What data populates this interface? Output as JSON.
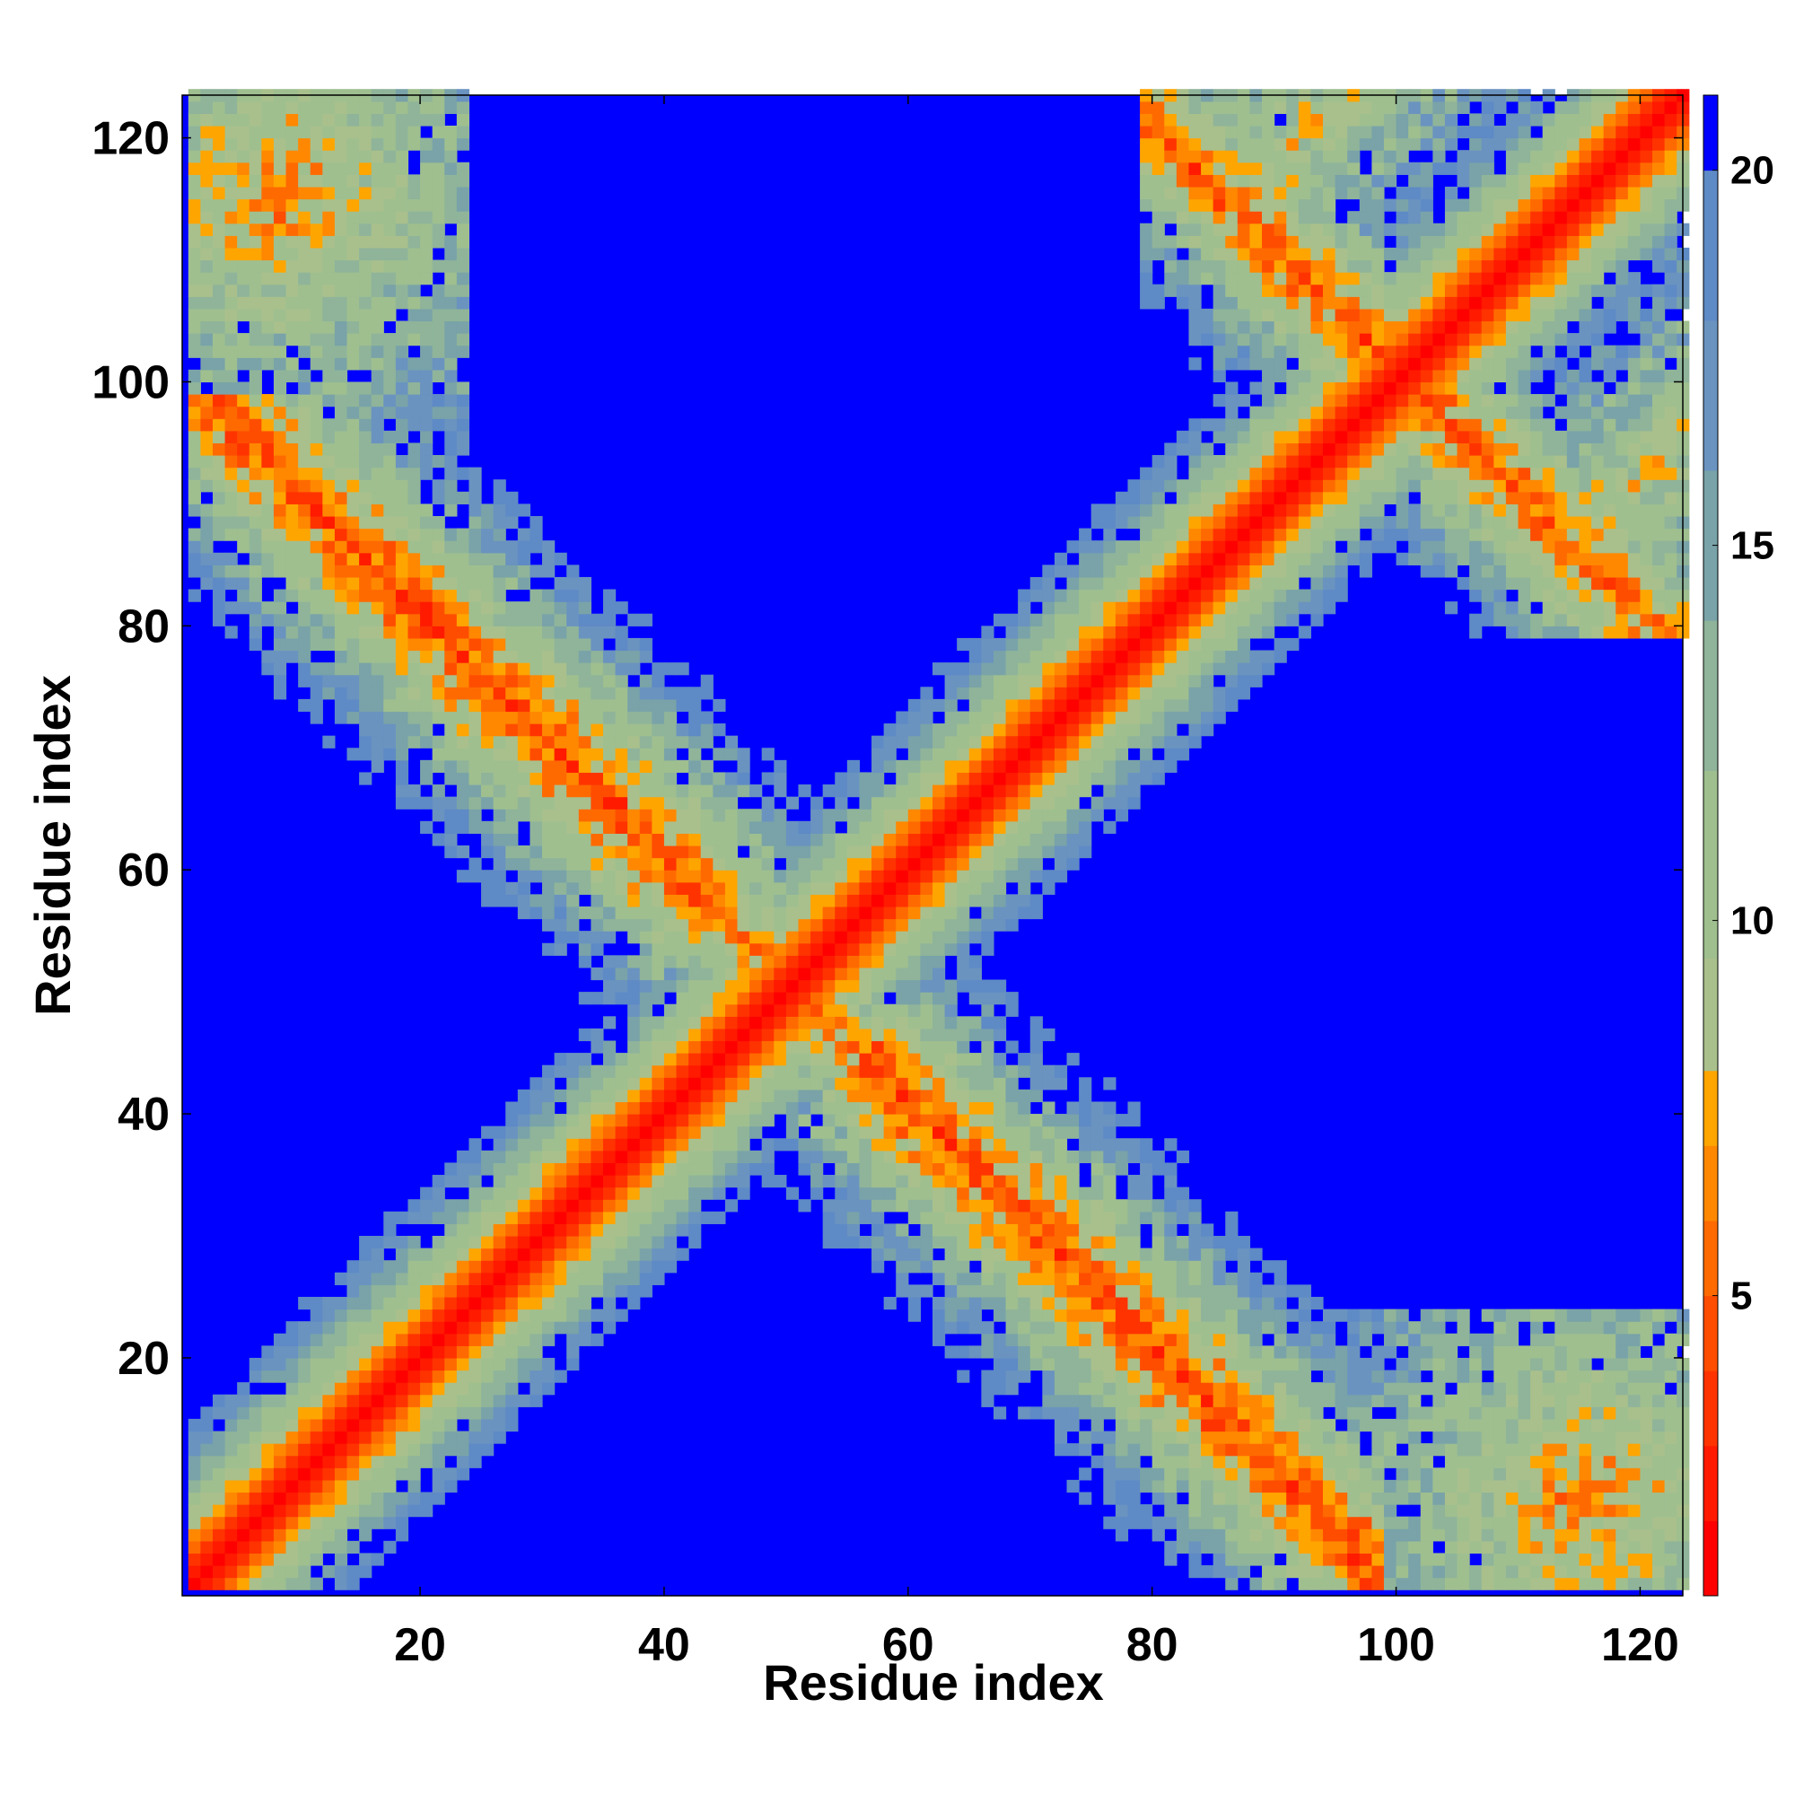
{
  "chart_data": {
    "type": "heatmap",
    "title": "",
    "xlabel": "Residue index",
    "ylabel": "Residue index",
    "n_residues": 123,
    "xlim": [
      1,
      123
    ],
    "ylim": [
      1,
      123
    ],
    "x_ticks": [
      20,
      40,
      60,
      80,
      100,
      120
    ],
    "y_ticks": [
      20,
      40,
      60,
      80,
      100,
      120
    ],
    "colorbar": {
      "ticks": [
        5,
        10,
        15,
        20
      ],
      "range": [
        1,
        21
      ],
      "levels": [
        {
          "max": 2,
          "color": "#ff0000"
        },
        {
          "max": 3,
          "color": "#ff1a00"
        },
        {
          "max": 4,
          "color": "#ff3300"
        },
        {
          "max": 5,
          "color": "#ff4d00"
        },
        {
          "max": 6,
          "color": "#ff6a00"
        },
        {
          "max": 7,
          "color": "#ff8800"
        },
        {
          "max": 8,
          "color": "#ffa500"
        },
        {
          "max": 9.5,
          "color": "#a9c08c"
        },
        {
          "max": 12,
          "color": "#9fbf8f"
        },
        {
          "max": 14,
          "color": "#8fb49a"
        },
        {
          "max": 16,
          "color": "#79a3a8"
        },
        {
          "max": 18,
          "color": "#6a93c0"
        },
        {
          "max": 20,
          "color": "#5e8ac6"
        },
        {
          "max": 21,
          "color": "#0000ff"
        }
      ]
    },
    "features": {
      "main_diagonal": "residue i vs i",
      "anti_diagonal_crossing_at": 50,
      "anti_diagonal_secondary_crossing_at": 100,
      "far_contact_bands": [
        "top-left corner",
        "bottom-right corner"
      ]
    }
  }
}
